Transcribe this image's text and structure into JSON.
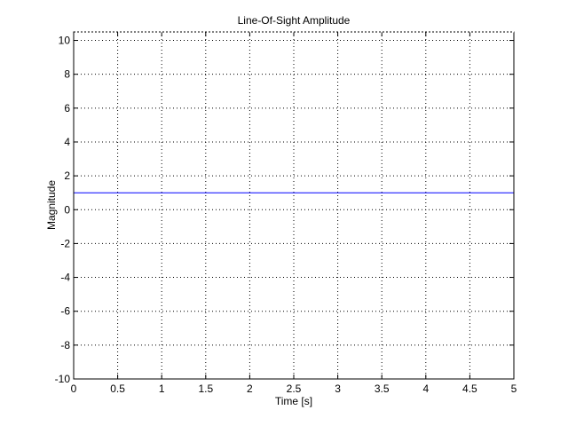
{
  "chart_data": {
    "type": "line",
    "title": "Line-Of-Sight Amplitude",
    "xlabel": "Time [s]",
    "ylabel": "Magnitude",
    "xlim": [
      0,
      5
    ],
    "ylim": [
      -10,
      10.5
    ],
    "xticks": [
      0,
      0.5,
      1,
      1.5,
      2,
      2.5,
      3,
      3.5,
      4,
      4.5,
      5
    ],
    "yticks": [
      -10,
      -8,
      -6,
      -4,
      -2,
      0,
      2,
      4,
      6,
      8,
      10
    ],
    "xtick_labels": [
      "0",
      "0.5",
      "1",
      "1.5",
      "2",
      "2.5",
      "3",
      "3.5",
      "4",
      "4.5",
      "5"
    ],
    "ytick_labels": [
      "-10",
      "-8",
      "-6",
      "-4",
      "-2",
      "0",
      "2",
      "4",
      "6",
      "8",
      "10"
    ],
    "grid": true,
    "series": [
      {
        "x": [
          0,
          5
        ],
        "y": [
          1,
          1
        ],
        "color": "#0000ff"
      }
    ]
  }
}
